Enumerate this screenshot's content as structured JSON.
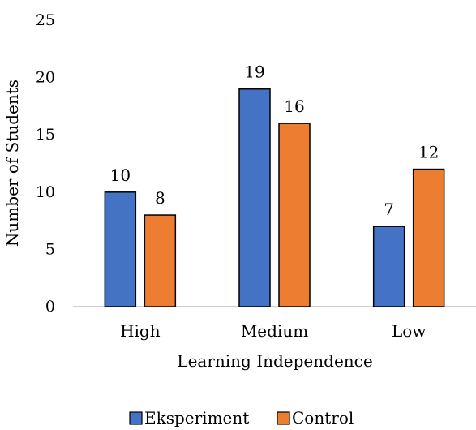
{
  "chart_data": {
    "type": "bar",
    "categories": [
      "High",
      "Medium",
      "Low"
    ],
    "series": [
      {
        "name": "Eksperiment",
        "values": [
          10,
          19,
          7
        ],
        "color": "#4472C4"
      },
      {
        "name": "Control",
        "values": [
          8,
          16,
          12
        ],
        "color": "#ED7D31"
      }
    ],
    "xlabel": "Learning Independence",
    "ylabel": "Number of Students",
    "ylim": [
      0,
      25
    ],
    "yticks": [
      0,
      5,
      10,
      15,
      20,
      25
    ],
    "grid": false,
    "legend": "bottom",
    "data_labels": true
  }
}
